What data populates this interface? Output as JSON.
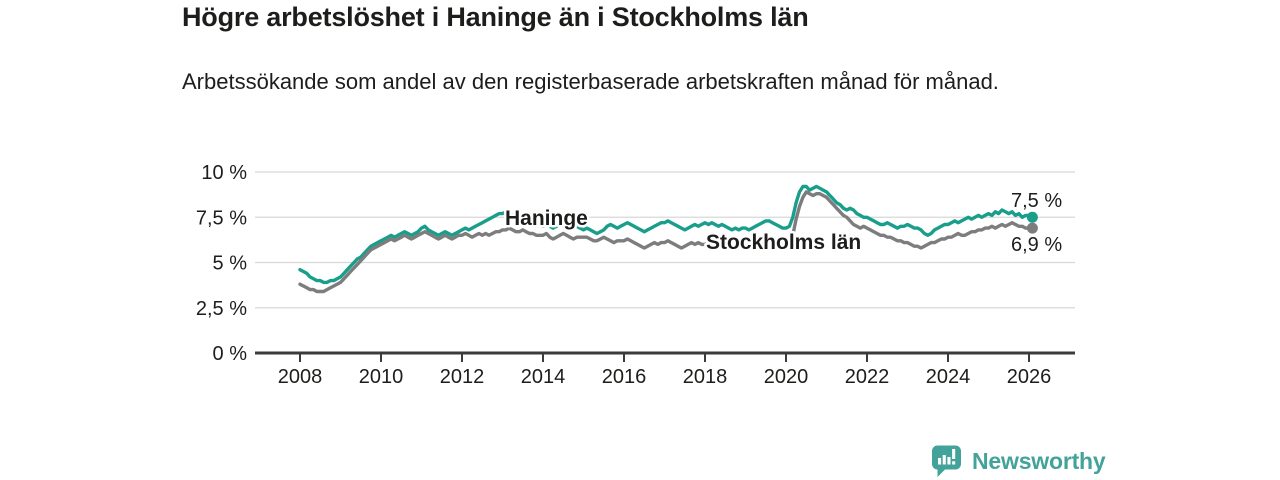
{
  "header": {
    "title": "Högre arbetslöshet i Haninge än i Stockholms län",
    "subtitle": "Arbetssökande som andel av den registerbaserade arbetskraften månad för månad."
  },
  "footer": {
    "brand": "Newsworthy"
  },
  "chart_data": {
    "type": "line",
    "title": "Högre arbetslöshet i Haninge än i Stockholms län",
    "x_start": "2008-01",
    "x_step_months": 1,
    "x_end": "2026-02",
    "x_ticks": [
      "2008",
      "2010",
      "2012",
      "2014",
      "2016",
      "2018",
      "2020",
      "2022",
      "2024",
      "2026"
    ],
    "y_ticks": [
      {
        "label": "0 %",
        "value": 0
      },
      {
        "label": "2,5 %",
        "value": 2.5
      },
      {
        "label": "5 %",
        "value": 5
      },
      {
        "label": "7,5 %",
        "value": 7.5
      },
      {
        "label": "10 %",
        "value": 10
      }
    ],
    "ylim": [
      0,
      10.5
    ],
    "grid": "horizontal",
    "axis_color": "#3b3b3b",
    "grid_color": "#d8d8d8",
    "legend_position": "inline-labels",
    "series": [
      {
        "name": "Haninge",
        "color": "#1a9e8c",
        "end_label": "7,5 %",
        "end_value": 7.5,
        "values": [
          4.6,
          4.5,
          4.4,
          4.2,
          4.1,
          4.0,
          4.0,
          3.9,
          3.9,
          4.0,
          4.0,
          4.1,
          4.2,
          4.4,
          4.6,
          4.8,
          5.0,
          5.2,
          5.3,
          5.5,
          5.7,
          5.9,
          6.0,
          6.1,
          6.2,
          6.3,
          6.4,
          6.5,
          6.4,
          6.5,
          6.6,
          6.7,
          6.6,
          6.5,
          6.6,
          6.7,
          6.9,
          7.0,
          6.8,
          6.7,
          6.6,
          6.5,
          6.6,
          6.7,
          6.6,
          6.5,
          6.6,
          6.7,
          6.8,
          6.9,
          6.8,
          6.9,
          7.0,
          7.1,
          7.2,
          7.3,
          7.4,
          7.5,
          7.6,
          7.7,
          7.7,
          7.8,
          7.7,
          7.6,
          7.5,
          7.4,
          7.4,
          7.3,
          7.3,
          7.2,
          7.1,
          7.1,
          7.0,
          7.1,
          7.0,
          6.9,
          7.0,
          7.1,
          7.0,
          6.9,
          6.8,
          6.9,
          7.0,
          6.9,
          6.8,
          6.9,
          6.8,
          6.7,
          6.6,
          6.7,
          6.8,
          7.0,
          7.1,
          7.0,
          6.9,
          7.0,
          7.1,
          7.2,
          7.1,
          7.0,
          6.9,
          6.8,
          6.7,
          6.8,
          6.9,
          7.0,
          7.1,
          7.2,
          7.2,
          7.3,
          7.2,
          7.1,
          7.0,
          6.9,
          6.8,
          6.9,
          7.0,
          7.1,
          7.0,
          7.1,
          7.2,
          7.1,
          7.2,
          7.1,
          7.0,
          7.1,
          7.0,
          6.9,
          6.8,
          6.9,
          6.8,
          6.9,
          6.9,
          6.8,
          6.9,
          7.0,
          7.1,
          7.2,
          7.3,
          7.3,
          7.2,
          7.1,
          7.0,
          6.9,
          6.9,
          7.0,
          7.5,
          8.3,
          8.9,
          9.2,
          9.2,
          9.0,
          9.1,
          9.2,
          9.1,
          9.0,
          8.9,
          8.7,
          8.5,
          8.3,
          8.2,
          8.0,
          7.9,
          8.0,
          7.9,
          7.7,
          7.6,
          7.5,
          7.5,
          7.4,
          7.3,
          7.2,
          7.1,
          7.1,
          7.2,
          7.1,
          7.0,
          6.9,
          7.0,
          7.0,
          7.1,
          7.0,
          6.9,
          6.9,
          6.8,
          6.6,
          6.5,
          6.6,
          6.8,
          6.9,
          7.0,
          7.1,
          7.1,
          7.2,
          7.3,
          7.2,
          7.3,
          7.4,
          7.5,
          7.4,
          7.5,
          7.6,
          7.5,
          7.6,
          7.7,
          7.6,
          7.8,
          7.7,
          7.9,
          7.8,
          7.7,
          7.8,
          7.6,
          7.7,
          7.5,
          7.6,
          7.6,
          7.5
        ]
      },
      {
        "name": "Stockholms län",
        "color": "#7d7d7d",
        "end_label": "6,9 %",
        "end_value": 6.9,
        "values": [
          3.8,
          3.7,
          3.6,
          3.5,
          3.5,
          3.4,
          3.4,
          3.4,
          3.5,
          3.6,
          3.7,
          3.8,
          3.9,
          4.1,
          4.3,
          4.5,
          4.7,
          4.9,
          5.1,
          5.3,
          5.5,
          5.7,
          5.8,
          5.9,
          6.0,
          6.1,
          6.2,
          6.3,
          6.2,
          6.3,
          6.4,
          6.5,
          6.4,
          6.3,
          6.4,
          6.5,
          6.6,
          6.7,
          6.6,
          6.5,
          6.4,
          6.3,
          6.4,
          6.5,
          6.4,
          6.3,
          6.4,
          6.5,
          6.5,
          6.6,
          6.5,
          6.4,
          6.5,
          6.6,
          6.5,
          6.6,
          6.5,
          6.6,
          6.7,
          6.7,
          6.8,
          6.8,
          6.9,
          6.8,
          6.7,
          6.7,
          6.8,
          6.7,
          6.6,
          6.6,
          6.5,
          6.5,
          6.5,
          6.6,
          6.4,
          6.3,
          6.4,
          6.5,
          6.6,
          6.5,
          6.4,
          6.3,
          6.4,
          6.4,
          6.4,
          6.4,
          6.3,
          6.2,
          6.2,
          6.3,
          6.4,
          6.3,
          6.2,
          6.1,
          6.2,
          6.2,
          6.2,
          6.3,
          6.2,
          6.1,
          6.0,
          5.9,
          5.8,
          5.9,
          6.0,
          6.1,
          6.0,
          6.1,
          6.1,
          6.2,
          6.1,
          6.0,
          5.9,
          5.8,
          5.9,
          6.0,
          6.1,
          6.0,
          6.1,
          6.0,
          6.0,
          6.1,
          6.0,
          5.9,
          6.0,
          6.1,
          6.0,
          5.9,
          5.9,
          6.0,
          6.1,
          6.0,
          5.9,
          5.8,
          5.8,
          5.9,
          6.0,
          6.1,
          6.2,
          6.3,
          6.2,
          6.1,
          6.0,
          6.0,
          6.0,
          6.1,
          6.5,
          7.4,
          8.1,
          8.6,
          8.9,
          8.8,
          8.7,
          8.8,
          8.8,
          8.7,
          8.6,
          8.4,
          8.2,
          8.0,
          7.8,
          7.6,
          7.5,
          7.3,
          7.1,
          7.0,
          6.9,
          7.0,
          6.9,
          6.8,
          6.7,
          6.6,
          6.5,
          6.5,
          6.4,
          6.4,
          6.3,
          6.2,
          6.2,
          6.1,
          6.1,
          6.0,
          5.9,
          5.9,
          5.8,
          5.9,
          6.0,
          6.1,
          6.1,
          6.2,
          6.3,
          6.3,
          6.4,
          6.4,
          6.5,
          6.6,
          6.5,
          6.5,
          6.6,
          6.7,
          6.7,
          6.8,
          6.8,
          6.9,
          6.9,
          7.0,
          6.9,
          7.0,
          7.1,
          7.0,
          7.1,
          7.2,
          7.1,
          7.0,
          7.0,
          6.9,
          6.9,
          6.9
        ]
      }
    ]
  }
}
